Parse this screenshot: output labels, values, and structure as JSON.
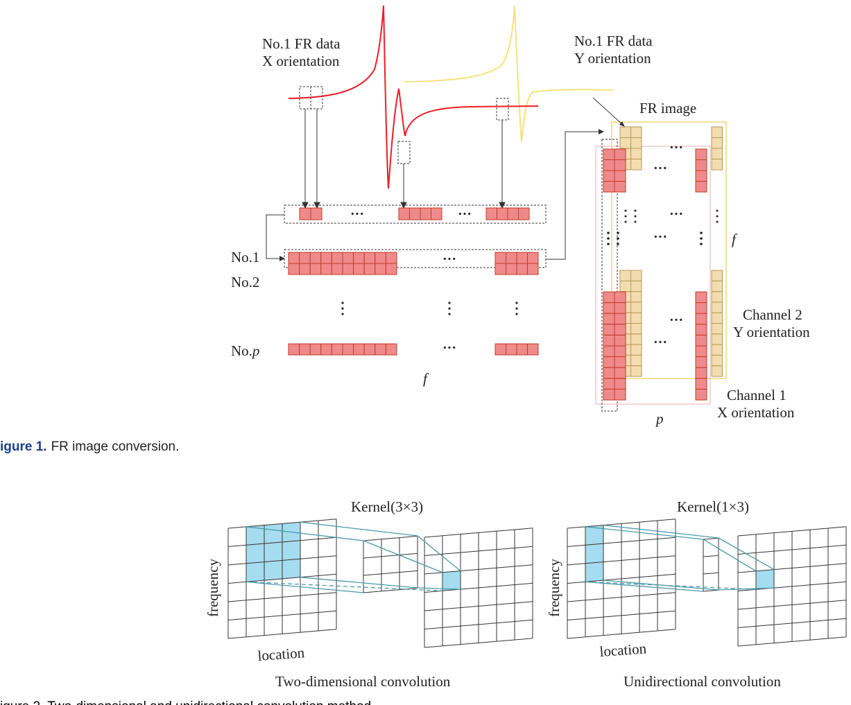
{
  "figure1": {
    "label_x_data_line1": "No.1 FR data",
    "label_x_data_line2": "X orientation",
    "label_y_data_line1": "No.1 FR data",
    "label_y_data_line2": "Y orientation",
    "label_fr_image": "FR image",
    "row_labels": [
      "No.1",
      "No.2",
      "No."
    ],
    "row_p_suffix": "p",
    "axis_f": "f",
    "axis_p": "p",
    "channel2_line1": "Channel 2",
    "channel2_line2": "Y orientation",
    "channel1_line1": "Channel 1",
    "channel1_line2": "X orientation",
    "caption_number": "igure 1.",
    "caption_text": "FR image conversion.",
    "colors": {
      "x_curve": "#ee1c24",
      "y_curve": "#f7e27a",
      "x_cell": "#f08a8a",
      "y_cell": "#f2dcb0"
    }
  },
  "figure2": {
    "kernel_left": "Kernel(3×3)",
    "kernel_right": "Kernel(1×3)",
    "axis_frequency": "frequency",
    "axis_location": "location",
    "title_left": "Two-dimensional convolution",
    "title_right": "Unidirectional convolution",
    "caption_partial": "igure 2.  Two-dimensional and unidirectional convolution method.",
    "colors": {
      "kernel_fill": "#a6dcef",
      "connector": "#4a9aa8"
    }
  }
}
